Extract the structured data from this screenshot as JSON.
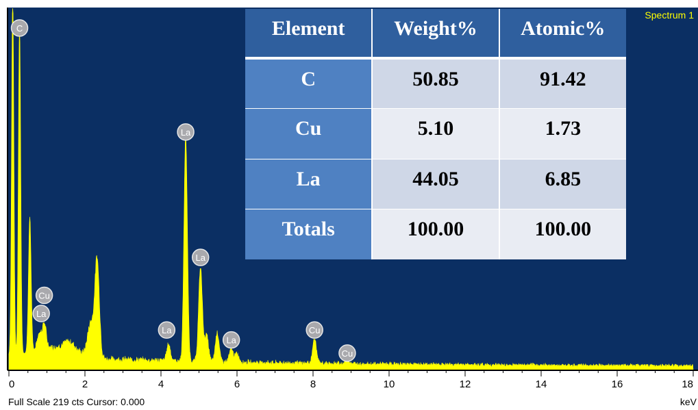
{
  "spectrum_label": "Spectrum 1",
  "footer_text": "Full Scale 219 cts Cursor: 0.000",
  "unit_label": "keV",
  "colors": {
    "background": "#0b2f63",
    "trace": "#ffff00",
    "axis": "#000000"
  },
  "table": {
    "headers": [
      "Element",
      "Weight%",
      "Atomic%"
    ],
    "rows": [
      {
        "element": "C",
        "weight": "50.85",
        "atomic": "91.42"
      },
      {
        "element": "Cu",
        "weight": "5.10",
        "atomic": "1.73"
      },
      {
        "element": "La",
        "weight": "44.05",
        "atomic": "6.85"
      },
      {
        "element": "Totals",
        "weight": "100.00",
        "atomic": "100.00"
      }
    ]
  },
  "chart_data": {
    "type": "area",
    "title": "",
    "xlabel": "keV",
    "ylabel": "",
    "xlim": [
      0,
      18
    ],
    "ylim": [
      0,
      219
    ],
    "x_ticks": [
      0,
      2,
      4,
      6,
      8,
      10,
      12,
      14,
      16,
      18
    ],
    "x_tick_labels": [
      "0",
      "2",
      "4",
      "6",
      "8",
      "10",
      "12",
      "14",
      "16",
      "18"
    ],
    "legend": "Spectrum 1",
    "baseline": 6,
    "peaks": [
      {
        "x": 0.1,
        "y": 219,
        "w": 0.03
      },
      {
        "x": 0.28,
        "y": 200,
        "w": 0.03
      },
      {
        "x": 0.55,
        "y": 82,
        "w": 0.035
      },
      {
        "x": 0.8,
        "y": 10,
        "w": 0.05
      },
      {
        "x": 0.93,
        "y": 15,
        "w": 0.05
      },
      {
        "x": 1.6,
        "y": 5,
        "w": 0.15
      },
      {
        "x": 2.32,
        "y": 59,
        "w": 0.06
      },
      {
        "x": 2.15,
        "y": 20,
        "w": 0.08
      },
      {
        "x": 4.2,
        "y": 10,
        "w": 0.05
      },
      {
        "x": 4.65,
        "y": 137,
        "w": 0.045
      },
      {
        "x": 5.04,
        "y": 57,
        "w": 0.05
      },
      {
        "x": 5.2,
        "y": 16,
        "w": 0.05
      },
      {
        "x": 5.48,
        "y": 18,
        "w": 0.05
      },
      {
        "x": 5.85,
        "y": 8,
        "w": 0.05
      },
      {
        "x": 6.0,
        "y": 5,
        "w": 0.05
      },
      {
        "x": 8.04,
        "y": 15,
        "w": 0.05
      },
      {
        "x": 8.9,
        "y": 3,
        "w": 0.05
      }
    ],
    "peak_labels": [
      {
        "label": "C",
        "x": 0.28,
        "y": 207
      },
      {
        "label": "Cu",
        "x": 0.93,
        "y": 45
      },
      {
        "label": "La",
        "x": 0.85,
        "y": 34
      },
      {
        "label": "La",
        "x": 4.15,
        "y": 24
      },
      {
        "label": "La",
        "x": 4.65,
        "y": 144
      },
      {
        "label": "La",
        "x": 5.04,
        "y": 68
      },
      {
        "label": "La",
        "x": 5.85,
        "y": 18
      },
      {
        "label": "Cu",
        "x": 8.04,
        "y": 24
      },
      {
        "label": "Cu",
        "x": 8.9,
        "y": 10
      }
    ]
  }
}
